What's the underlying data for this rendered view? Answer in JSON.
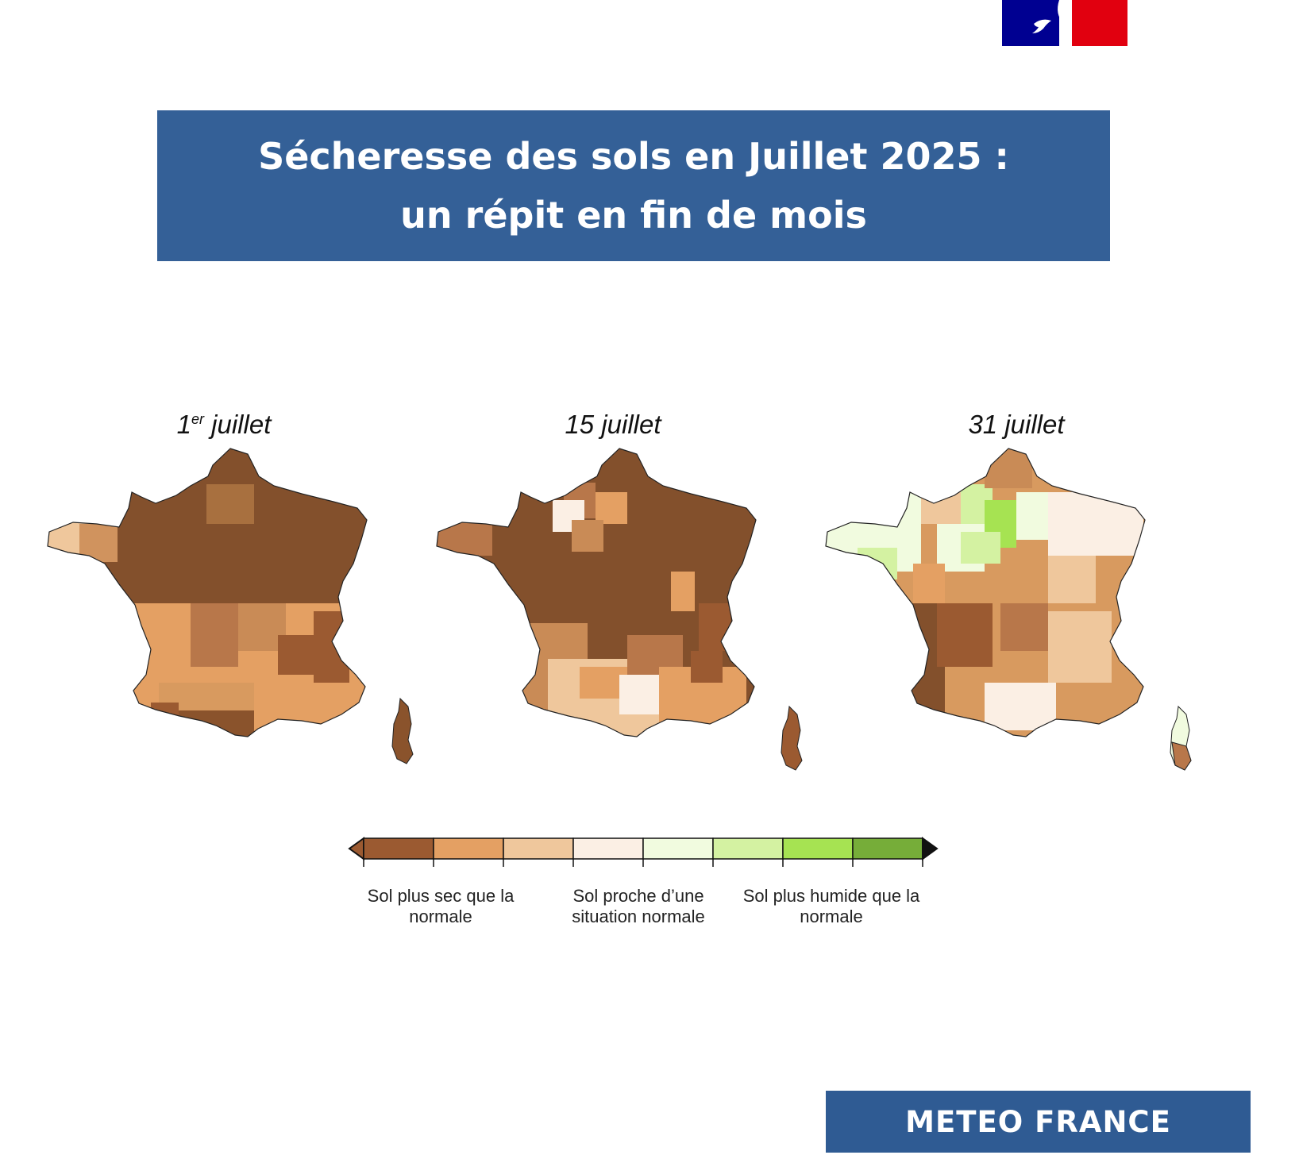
{
  "title": {
    "line1": "Sécheresse des sols en Juillet 2025 :",
    "line2": "un répit en fin de mois"
  },
  "maps": [
    {
      "label_main": "1",
      "label_sup": "er",
      "label_rest": " juillet"
    },
    {
      "label": "15 juillet"
    },
    {
      "label": "31 juillet"
    }
  ],
  "legend": {
    "colors": [
      "#9b5a31",
      "#e4a063",
      "#efc79c",
      "#fbefe4",
      "#f1fbdf",
      "#d4f2a2",
      "#a6e352",
      "#76ad39"
    ],
    "labels": [
      "Sol plus sec que la normale",
      "Sol proche d’une situation normale",
      "Sol plus humide que la normale"
    ]
  },
  "branding": {
    "brand": "METEO FRANCE"
  },
  "logo": {
    "colors": [
      "#000091",
      "#e1000f"
    ]
  }
}
